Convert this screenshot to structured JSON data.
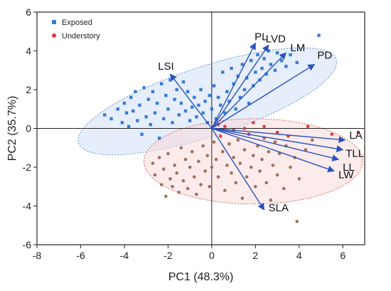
{
  "chart_data": {
    "type": "scatter",
    "title": "",
    "xlabel": "PC1 (48.3%)",
    "ylabel": "PC2 (35.7%)",
    "xlim": [
      -8,
      7
    ],
    "ylim": [
      -6,
      6
    ],
    "xticks": [
      -8,
      -6,
      -4,
      -2,
      0,
      2,
      4,
      6
    ],
    "yticks": [
      -6,
      -4,
      -2,
      0,
      2,
      4,
      6
    ],
    "grid": false,
    "legend_position": "top-left",
    "colors": {
      "exposed": "#3a7ad6",
      "understory": "#e03a3a",
      "understory_points": "#a07058",
      "arrow": "#2a52be",
      "ellipse_exposed_fill": "#cfe0f5",
      "ellipse_understory_fill": "#f7dada"
    },
    "series": [
      {
        "name": "Exposed",
        "marker": "square",
        "points": [
          [
            -4.9,
            0.7
          ],
          [
            -4.6,
            0.5
          ],
          [
            -4.3,
            1.0
          ],
          [
            -4.1,
            0.3
          ],
          [
            -4.0,
            1.3
          ],
          [
            -3.9,
            0.8
          ],
          [
            -3.8,
            0.1
          ],
          [
            -3.7,
            1.6
          ],
          [
            -3.6,
            0.9
          ],
          [
            -3.5,
            1.9
          ],
          [
            -3.4,
            0.4
          ],
          [
            -3.3,
            1.2
          ],
          [
            -3.2,
            -0.3
          ],
          [
            -3.1,
            2.1
          ],
          [
            -3.0,
            0.6
          ],
          [
            -2.9,
            1.5
          ],
          [
            -2.8,
            0.2
          ],
          [
            -2.7,
            1.9
          ],
          [
            -2.6,
            0.8
          ],
          [
            -2.5,
            1.3
          ],
          [
            -2.4,
            -0.5
          ],
          [
            -2.3,
            2.3
          ],
          [
            -2.2,
            0.5
          ],
          [
            -2.1,
            1.7
          ],
          [
            -2.0,
            1.0
          ],
          [
            -1.9,
            2.5
          ],
          [
            -1.8,
            0.3
          ],
          [
            -1.7,
            1.5
          ],
          [
            -1.6,
            2.0
          ],
          [
            -1.5,
            0.7
          ],
          [
            -1.4,
            1.3
          ],
          [
            -1.3,
            2.4
          ],
          [
            -1.2,
            0.9
          ],
          [
            -1.1,
            1.9
          ],
          [
            -1.0,
            0.4
          ],
          [
            -0.9,
            1.1
          ],
          [
            -0.8,
            1.6
          ],
          [
            -0.7,
            0.6
          ],
          [
            -0.6,
            1.2
          ],
          [
            -0.5,
            2.0
          ],
          [
            -0.4,
            0.8
          ],
          [
            -0.3,
            1.4
          ],
          [
            -0.2,
            0.3
          ],
          [
            -0.1,
            1.7
          ],
          [
            0.0,
            1.0
          ],
          [
            0.1,
            2.2
          ],
          [
            0.2,
            0.5
          ],
          [
            0.3,
            1.6
          ],
          [
            0.4,
            1.2
          ],
          [
            0.5,
            2.9
          ],
          [
            0.6,
            0.8
          ],
          [
            0.7,
            1.9
          ],
          [
            0.8,
            1.4
          ],
          [
            0.9,
            3.1
          ],
          [
            1.0,
            2.3
          ],
          [
            1.1,
            1.0
          ],
          [
            1.2,
            2.7
          ],
          [
            1.3,
            1.6
          ],
          [
            1.4,
            3.3
          ],
          [
            1.5,
            2.0
          ],
          [
            1.6,
            2.6
          ],
          [
            1.7,
            1.3
          ],
          [
            1.8,
            3.5
          ],
          [
            1.9,
            2.2
          ],
          [
            2.0,
            2.9
          ],
          [
            2.1,
            3.8
          ],
          [
            2.2,
            2.5
          ],
          [
            2.3,
            3.1
          ],
          [
            2.4,
            3.6
          ],
          [
            2.5,
            2.8
          ],
          [
            2.6,
            4.0
          ],
          [
            2.7,
            3.3
          ],
          [
            2.9,
            3.0
          ],
          [
            3.0,
            3.9
          ],
          [
            3.2,
            3.5
          ],
          [
            3.4,
            3.2
          ],
          [
            3.6,
            3.8
          ],
          [
            3.9,
            3.4
          ],
          [
            4.9,
            4.8
          ]
        ]
      },
      {
        "name": "Understory",
        "marker": "circle",
        "points": [
          [
            -2.7,
            -1.8
          ],
          [
            -2.6,
            -2.4
          ],
          [
            -2.4,
            -1.5
          ],
          [
            -2.3,
            -2.9
          ],
          [
            -2.2,
            -2.1
          ],
          [
            -2.1,
            -3.5
          ],
          [
            -2.0,
            -1.3
          ],
          [
            -1.9,
            -2.6
          ],
          [
            -1.8,
            -3.0
          ],
          [
            -1.7,
            -1.9
          ],
          [
            -1.6,
            -2.3
          ],
          [
            -1.5,
            -3.3
          ],
          [
            -1.4,
            -1.0
          ],
          [
            -1.3,
            -2.7
          ],
          [
            -1.2,
            -1.6
          ],
          [
            -1.1,
            -3.1
          ],
          [
            -1.0,
            -2.0
          ],
          [
            -0.9,
            -1.2
          ],
          [
            -0.8,
            -2.5
          ],
          [
            -0.7,
            -3.4
          ],
          [
            -0.6,
            -1.7
          ],
          [
            -0.5,
            -2.9
          ],
          [
            -0.4,
            -0.9
          ],
          [
            -0.3,
            -2.2
          ],
          [
            -0.2,
            -1.4
          ],
          [
            -0.1,
            -3.0
          ],
          [
            0.0,
            -2.0
          ],
          [
            0.1,
            -0.7
          ],
          [
            0.2,
            -1.6
          ],
          [
            0.3,
            -2.5
          ],
          [
            0.4,
            -0.4
          ],
          [
            0.5,
            -1.2
          ],
          [
            0.6,
            -3.2
          ],
          [
            0.7,
            -1.9
          ],
          [
            0.8,
            -0.8
          ],
          [
            0.9,
            -2.3
          ],
          [
            1.0,
            -1.5
          ],
          [
            1.1,
            -2.8
          ],
          [
            1.2,
            -0.6
          ],
          [
            1.3,
            -1.8
          ],
          [
            1.4,
            -3.6
          ],
          [
            1.5,
            -1.1
          ],
          [
            1.6,
            -2.5
          ],
          [
            1.7,
            -0.3
          ],
          [
            1.8,
            -2.0
          ],
          [
            1.9,
            -1.4
          ],
          [
            2.0,
            -3.0
          ],
          [
            2.1,
            -0.9
          ],
          [
            2.2,
            -2.2
          ],
          [
            2.3,
            -1.6
          ],
          [
            2.4,
            -0.5
          ],
          [
            2.5,
            -2.8
          ],
          [
            2.6,
            -1.2
          ],
          [
            2.7,
            -3.7
          ],
          [
            2.8,
            -1.9
          ],
          [
            2.9,
            -0.7
          ],
          [
            3.0,
            -2.4
          ],
          [
            3.1,
            -1.3
          ],
          [
            3.3,
            -3.1
          ],
          [
            3.4,
            -0.9
          ],
          [
            3.6,
            -2.0
          ],
          [
            3.8,
            -1.5
          ],
          [
            4.0,
            -2.6
          ],
          [
            4.3,
            -1.1
          ],
          [
            4.6,
            -0.6
          ],
          [
            3.9,
            -4.8
          ],
          [
            0.3,
            0.2
          ],
          [
            0.6,
            0.1
          ],
          [
            1.0,
            -0.1
          ],
          [
            1.5,
            0.0
          ],
          [
            1.9,
            0.3
          ],
          [
            2.4,
            0.1
          ],
          [
            3.0,
            -0.2
          ],
          [
            3.5,
            -0.4
          ],
          [
            4.4,
            0.1
          ],
          [
            5.5,
            -0.3
          ],
          [
            6.7,
            -0.2
          ]
        ]
      }
    ],
    "loadings": [
      {
        "label": "LSI",
        "x": -1.9,
        "y": 2.8
      },
      {
        "label": "PL",
        "x": 2.0,
        "y": 4.4
      },
      {
        "label": "LVD",
        "x": 2.6,
        "y": 4.3
      },
      {
        "label": "LM",
        "x": 3.4,
        "y": 3.9
      },
      {
        "label": "PD",
        "x": 4.7,
        "y": 3.3
      },
      {
        "label": "LA",
        "x": 6.1,
        "y": -0.6
      },
      {
        "label": "TLL",
        "x": 6.0,
        "y": -1.1
      },
      {
        "label": "LL",
        "x": 5.8,
        "y": -1.6
      },
      {
        "label": "LW",
        "x": 5.6,
        "y": -2.2
      },
      {
        "label": "SLA",
        "x": 2.4,
        "y": -4.2
      }
    ],
    "ellipses": [
      {
        "group": "Exposed",
        "cx": -0.2,
        "cy": 1.4,
        "rx": 6.2,
        "ry": 1.8,
        "angle_deg": 18
      },
      {
        "group": "Understory",
        "cx": 1.9,
        "cy": -1.7,
        "rx": 5.0,
        "ry": 2.2,
        "angle_deg": 0
      }
    ]
  }
}
